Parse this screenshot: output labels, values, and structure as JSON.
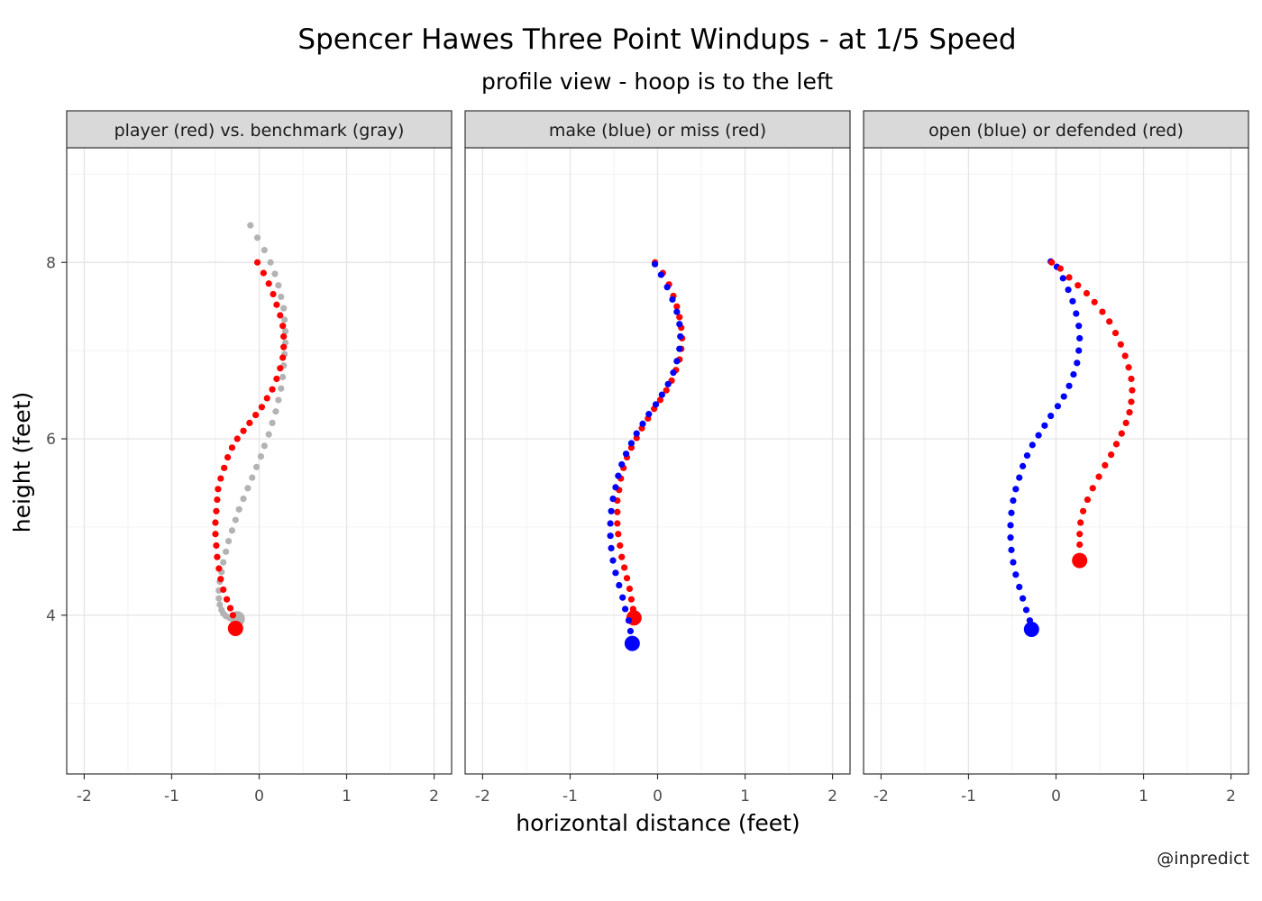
{
  "chart_data": {
    "type": "scatter",
    "title": "Spencer Hawes Three Point Windups - at 1/5 Speed",
    "subtitle": "profile view - hoop is to the left",
    "xlabel": "horizontal distance (feet)",
    "ylabel": "height (feet)",
    "caption": "@inpredict",
    "xlim": [
      -2.2,
      2.2
    ],
    "ylim": [
      2.2,
      9.3
    ],
    "x_ticks": [
      -2,
      -1,
      0,
      1,
      2
    ],
    "x_tick_labels": [
      "-2",
      "-1",
      "0",
      "1",
      "2"
    ],
    "y_ticks": [
      4,
      6,
      8
    ],
    "y_tick_labels": [
      "4",
      "6",
      "8"
    ],
    "grid": true,
    "colors": {
      "red": "#ff0000",
      "blue": "#0000ff",
      "gray": "#b3b3b3",
      "strip_bg": "#d9d9d9",
      "grid_major": "#e6e6e6",
      "grid_minor": "#f2f2f2"
    },
    "panels": [
      {
        "strip": "player (red) vs. benchmark (gray)",
        "series": [
          {
            "color": "gray",
            "points": [
              [
                -0.1,
                8.42
              ],
              [
                -0.02,
                8.28
              ],
              [
                0.06,
                8.14
              ],
              [
                0.13,
                8.0
              ],
              [
                0.18,
                7.87
              ],
              [
                0.22,
                7.74
              ],
              [
                0.25,
                7.61
              ],
              [
                0.28,
                7.48
              ],
              [
                0.29,
                7.35
              ],
              [
                0.3,
                7.22
              ],
              [
                0.3,
                7.09
              ],
              [
                0.29,
                6.96
              ],
              [
                0.28,
                6.83
              ],
              [
                0.27,
                6.7
              ],
              [
                0.25,
                6.57
              ],
              [
                0.22,
                6.44
              ],
              [
                0.19,
                6.31
              ],
              [
                0.15,
                6.18
              ],
              [
                0.11,
                6.05
              ],
              [
                0.06,
                5.92
              ],
              [
                0.02,
                5.8
              ],
              [
                -0.03,
                5.68
              ],
              [
                -0.08,
                5.56
              ],
              [
                -0.13,
                5.44
              ],
              [
                -0.18,
                5.32
              ],
              [
                -0.23,
                5.2
              ],
              [
                -0.27,
                5.08
              ],
              [
                -0.31,
                4.96
              ],
              [
                -0.35,
                4.84
              ],
              [
                -0.38,
                4.72
              ],
              [
                -0.41,
                4.6
              ],
              [
                -0.43,
                4.49
              ],
              [
                -0.45,
                4.38
              ],
              [
                -0.46,
                4.28
              ],
              [
                -0.46,
                4.19
              ],
              [
                -0.45,
                4.12
              ],
              [
                -0.43,
                4.06
              ],
              [
                -0.41,
                4.02
              ],
              [
                -0.38,
                3.99
              ],
              [
                -0.34,
                3.97
              ],
              [
                -0.3,
                3.96
              ]
            ],
            "end": [
              -0.25,
              3.96
            ]
          },
          {
            "color": "red",
            "points": [
              [
                -0.02,
                8.0
              ],
              [
                0.05,
                7.88
              ],
              [
                0.11,
                7.76
              ],
              [
                0.16,
                7.64
              ],
              [
                0.2,
                7.52
              ],
              [
                0.24,
                7.4
              ],
              [
                0.27,
                7.28
              ],
              [
                0.28,
                7.16
              ],
              [
                0.28,
                7.04
              ],
              [
                0.27,
                6.92
              ],
              [
                0.24,
                6.8
              ],
              [
                0.2,
                6.68
              ],
              [
                0.15,
                6.56
              ],
              [
                0.09,
                6.46
              ],
              [
                0.03,
                6.36
              ],
              [
                -0.04,
                6.27
              ],
              [
                -0.11,
                6.18
              ],
              [
                -0.18,
                6.09
              ],
              [
                -0.25,
                6.0
              ],
              [
                -0.31,
                5.9
              ],
              [
                -0.36,
                5.79
              ],
              [
                -0.4,
                5.67
              ],
              [
                -0.44,
                5.55
              ],
              [
                -0.47,
                5.43
              ],
              [
                -0.48,
                5.31
              ],
              [
                -0.49,
                5.18
              ],
              [
                -0.5,
                5.05
              ],
              [
                -0.5,
                4.92
              ],
              [
                -0.49,
                4.79
              ],
              [
                -0.48,
                4.66
              ],
              [
                -0.46,
                4.53
              ],
              [
                -0.44,
                4.41
              ],
              [
                -0.41,
                4.29
              ],
              [
                -0.37,
                4.18
              ],
              [
                -0.33,
                4.08
              ],
              [
                -0.3,
                4.0
              ]
            ],
            "end": [
              -0.27,
              3.85
            ]
          }
        ]
      },
      {
        "strip": "make (blue) or miss (red)",
        "series": [
          {
            "color": "red",
            "points": [
              [
                -0.03,
                8.0
              ],
              [
                0.06,
                7.88
              ],
              [
                0.13,
                7.75
              ],
              [
                0.18,
                7.62
              ],
              [
                0.22,
                7.5
              ],
              [
                0.25,
                7.38
              ],
              [
                0.27,
                7.26
              ],
              [
                0.28,
                7.14
              ],
              [
                0.27,
                7.02
              ],
              [
                0.25,
                6.9
              ],
              [
                0.21,
                6.78
              ],
              [
                0.16,
                6.66
              ],
              [
                0.1,
                6.55
              ],
              [
                0.03,
                6.44
              ],
              [
                -0.04,
                6.34
              ],
              [
                -0.11,
                6.23
              ],
              [
                -0.18,
                6.12
              ],
              [
                -0.24,
                6.01
              ],
              [
                -0.3,
                5.9
              ],
              [
                -0.35,
                5.79
              ],
              [
                -0.39,
                5.67
              ],
              [
                -0.42,
                5.55
              ],
              [
                -0.44,
                5.42
              ],
              [
                -0.46,
                5.3
              ],
              [
                -0.46,
                5.17
              ],
              [
                -0.46,
                5.04
              ],
              [
                -0.45,
                4.92
              ],
              [
                -0.43,
                4.79
              ],
              [
                -0.41,
                4.66
              ],
              [
                -0.38,
                4.54
              ],
              [
                -0.35,
                4.42
              ],
              [
                -0.32,
                4.3
              ],
              [
                -0.3,
                4.18
              ],
              [
                -0.28,
                4.07
              ]
            ],
            "end": [
              -0.27,
              3.97
            ]
          },
          {
            "color": "blue",
            "points": [
              [
                -0.03,
                7.98
              ],
              [
                0.04,
                7.86
              ],
              [
                0.11,
                7.72
              ],
              [
                0.17,
                7.58
              ],
              [
                0.22,
                7.44
              ],
              [
                0.25,
                7.3
              ],
              [
                0.26,
                7.16
              ],
              [
                0.25,
                7.02
              ],
              [
                0.22,
                6.88
              ],
              [
                0.18,
                6.75
              ],
              [
                0.12,
                6.62
              ],
              [
                0.05,
                6.5
              ],
              [
                -0.02,
                6.39
              ],
              [
                -0.1,
                6.28
              ],
              [
                -0.17,
                6.17
              ],
              [
                -0.24,
                6.06
              ],
              [
                -0.3,
                5.95
              ],
              [
                -0.36,
                5.83
              ],
              [
                -0.41,
                5.71
              ],
              [
                -0.45,
                5.58
              ],
              [
                -0.48,
                5.45
              ],
              [
                -0.51,
                5.32
              ],
              [
                -0.53,
                5.18
              ],
              [
                -0.54,
                5.04
              ],
              [
                -0.54,
                4.9
              ],
              [
                -0.53,
                4.76
              ],
              [
                -0.51,
                4.62
              ],
              [
                -0.48,
                4.48
              ],
              [
                -0.44,
                4.34
              ],
              [
                -0.4,
                4.2
              ],
              [
                -0.37,
                4.07
              ],
              [
                -0.33,
                3.94
              ],
              [
                -0.31,
                3.82
              ]
            ],
            "end": [
              -0.29,
              3.68
            ]
          }
        ]
      },
      {
        "strip": "open (blue) or defended (red)",
        "series": [
          {
            "color": "blue",
            "points": [
              [
                -0.06,
                8.01
              ],
              [
                0.01,
                7.95
              ],
              [
                0.08,
                7.82
              ],
              [
                0.14,
                7.69
              ],
              [
                0.19,
                7.56
              ],
              [
                0.23,
                7.42
              ],
              [
                0.26,
                7.28
              ],
              [
                0.27,
                7.14
              ],
              [
                0.26,
                7.0
              ],
              [
                0.24,
                6.86
              ],
              [
                0.2,
                6.73
              ],
              [
                0.15,
                6.6
              ],
              [
                0.09,
                6.48
              ],
              [
                0.02,
                6.37
              ],
              [
                -0.06,
                6.26
              ],
              [
                -0.13,
                6.15
              ],
              [
                -0.2,
                6.04
              ],
              [
                -0.27,
                5.93
              ],
              [
                -0.33,
                5.81
              ],
              [
                -0.38,
                5.69
              ],
              [
                -0.42,
                5.56
              ],
              [
                -0.46,
                5.43
              ],
              [
                -0.49,
                5.3
              ],
              [
                -0.51,
                5.16
              ],
              [
                -0.52,
                5.02
              ],
              [
                -0.52,
                4.88
              ],
              [
                -0.51,
                4.74
              ],
              [
                -0.49,
                4.6
              ],
              [
                -0.46,
                4.46
              ],
              [
                -0.42,
                4.32
              ],
              [
                -0.38,
                4.19
              ],
              [
                -0.34,
                4.06
              ],
              [
                -0.3,
                3.94
              ]
            ],
            "end": [
              -0.28,
              3.84
            ]
          },
          {
            "color": "red",
            "points": [
              [
                -0.05,
                8.0
              ],
              [
                0.05,
                7.93
              ],
              [
                0.15,
                7.83
              ],
              [
                0.25,
                7.74
              ],
              [
                0.35,
                7.65
              ],
              [
                0.44,
                7.55
              ],
              [
                0.53,
                7.44
              ],
              [
                0.61,
                7.33
              ],
              [
                0.68,
                7.2
              ],
              [
                0.74,
                7.07
              ],
              [
                0.79,
                6.94
              ],
              [
                0.83,
                6.81
              ],
              [
                0.86,
                6.68
              ],
              [
                0.87,
                6.55
              ],
              [
                0.86,
                6.42
              ],
              [
                0.84,
                6.3
              ],
              [
                0.8,
                6.18
              ],
              [
                0.75,
                6.06
              ],
              [
                0.69,
                5.94
              ],
              [
                0.63,
                5.82
              ],
              [
                0.56,
                5.7
              ],
              [
                0.49,
                5.57
              ],
              [
                0.42,
                5.44
              ],
              [
                0.36,
                5.31
              ],
              [
                0.31,
                5.18
              ],
              [
                0.28,
                5.05
              ],
              [
                0.27,
                4.92
              ],
              [
                0.27,
                4.8
              ]
            ],
            "end": [
              0.27,
              4.62
            ]
          }
        ]
      }
    ]
  }
}
